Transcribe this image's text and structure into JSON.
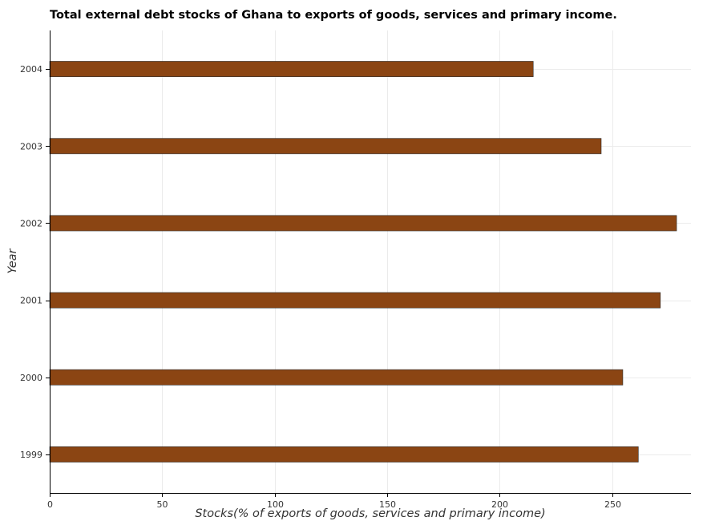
{
  "chart_data": {
    "type": "bar",
    "orientation": "horizontal",
    "title": "Total external debt stocks of Ghana to exports of goods, services and primary income.",
    "xlabel": "Stocks(% of exports of goods, services and primary income)",
    "ylabel": "Year",
    "categories": [
      "1999",
      "2000",
      "2001",
      "2002",
      "2003",
      "2004"
    ],
    "values": [
      261.6,
      254.7,
      271.4,
      278.6,
      245.1,
      214.9
    ],
    "xlim": [
      0,
      285
    ],
    "xticks": [
      0,
      50,
      100,
      150,
      200,
      250
    ],
    "bar_color": "#8b4513",
    "bar_edge_color": "#2b2b2b",
    "grid": true
  }
}
